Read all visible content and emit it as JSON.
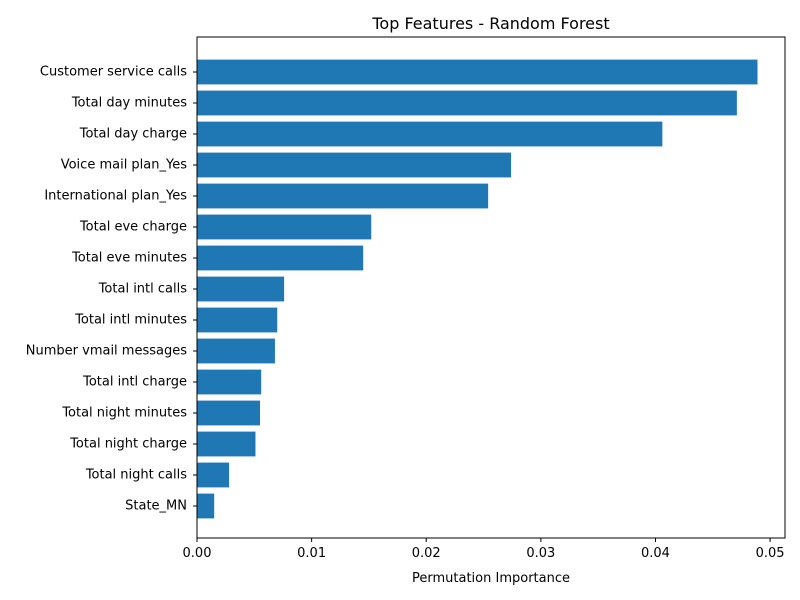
{
  "chart_data": {
    "type": "bar",
    "orientation": "horizontal",
    "title": "Top Features - Random Forest",
    "xlabel": "Permutation Importance",
    "ylabel": "",
    "xlim": [
      0,
      0.0513
    ],
    "xticks": [
      0.0,
      0.01,
      0.02,
      0.03,
      0.04,
      0.05
    ],
    "xtick_labels": [
      "0.00",
      "0.01",
      "0.02",
      "0.03",
      "0.04",
      "0.05"
    ],
    "grid": false,
    "bar_color": "#1f77b4",
    "categories": [
      "Customer service calls",
      "Total day minutes",
      "Total day charge",
      "Voice mail plan_Yes",
      "International plan_Yes",
      "Total eve charge",
      "Total eve minutes",
      "Total intl calls",
      "Total intl minutes",
      "Number vmail messages",
      "Total intl charge",
      "Total night minutes",
      "Total night charge",
      "Total night calls",
      "State_MN"
    ],
    "values": [
      0.0489,
      0.0471,
      0.0406,
      0.0274,
      0.0254,
      0.0152,
      0.0145,
      0.0076,
      0.007,
      0.0068,
      0.0056,
      0.0055,
      0.0051,
      0.0028,
      0.0015
    ]
  }
}
